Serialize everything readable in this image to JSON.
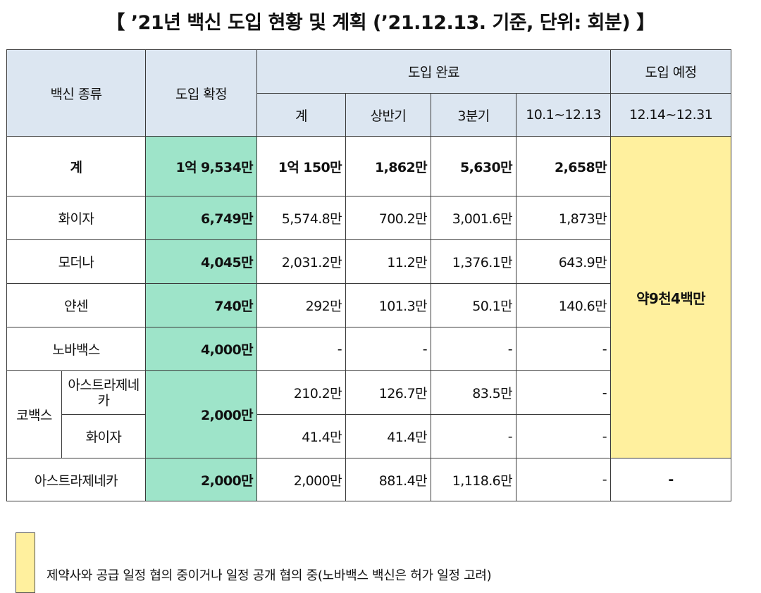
{
  "title": "【 ’21년 백신 도입 현황 및 계획 (’21.12.13. 기준, 단위: 회분) 】",
  "headers": {
    "vaccine_type": "백신 종류",
    "confirmed": "도입 확정",
    "completed": "도입 완료",
    "planned": "도입 예정",
    "sub_total": "계",
    "sub_h1": "상반기",
    "sub_q3": "3분기",
    "sub_q4": "10.1~12.13",
    "sub_planned": "12.14~12.31"
  },
  "rows": {
    "total": {
      "name": "계",
      "confirmed": "1억 9,534만",
      "total": "1억 150만",
      "h1": "1,862만",
      "q3": "5,630만",
      "q4": "2,658만"
    },
    "pfizer": {
      "name": "화이자",
      "confirmed": "6,749만",
      "total": "5,574.8만",
      "h1": "700.2만",
      "q3": "3,001.6만",
      "q4": "1,873만"
    },
    "moderna": {
      "name": "모더나",
      "confirmed": "4,045만",
      "total": "2,031.2만",
      "h1": "11.2만",
      "q3": "1,376.1만",
      "q4": "643.9만"
    },
    "janssen": {
      "name": "얀센",
      "confirmed": "740만",
      "total": "292만",
      "h1": "101.3만",
      "q3": "50.1만",
      "q4": "140.6만"
    },
    "novavax": {
      "name": "노바백스",
      "confirmed": "4,000만",
      "total": "-",
      "h1": "-",
      "q3": "-",
      "q4": "-"
    },
    "covax": {
      "group": "코백스",
      "confirmed": "2,000만",
      "astrazeneca": {
        "name": "아스트라제네카",
        "total": "210.2만",
        "h1": "126.7만",
        "q3": "83.5만",
        "q4": "-"
      },
      "pfizer": {
        "name": "화이자",
        "total": "41.4만",
        "h1": "41.4만",
        "q3": "-",
        "q4": "-"
      }
    },
    "astrazeneca": {
      "name": "아스트라제네카",
      "confirmed": "2,000만",
      "total": "2,000만",
      "h1": "881.4만",
      "q3": "1,118.6만",
      "q4": "-",
      "planned": "-"
    }
  },
  "planned_merged": "약9천4백만",
  "legend": {
    "color": "#fff09e",
    "text": "제약사와 공급 일정 협의 중이거나 일정 공개 협의 중(노바백스 백신은 허가 일정 고려)"
  }
}
